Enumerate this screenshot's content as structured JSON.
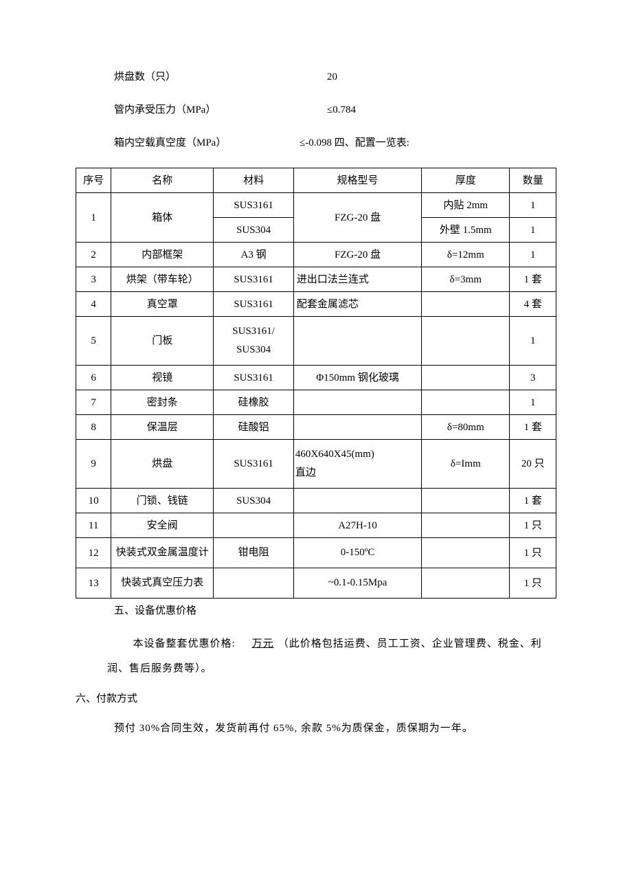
{
  "specs": [
    {
      "label": "烘盘数（只）",
      "value": "20",
      "shift": false
    },
    {
      "label": "管内承受压力（MPa）",
      "value": "≤0.784",
      "shift": false
    },
    {
      "label": "箱内空载真空度（MPa）",
      "value": "≤-0.098 四、配置一览表:",
      "shift": true
    }
  ],
  "table": {
    "headers": [
      "序号",
      "名称",
      "材料",
      "规格型号",
      "厚度",
      "数量"
    ],
    "rows": [
      {
        "seq": "1",
        "name": "箱体",
        "materials": [
          "SUS3161",
          "SUS304"
        ],
        "spec": "FZG-20 盘",
        "thicknesses": [
          "内贴 2mm",
          "外壁 1.5mm"
        ],
        "qtys": [
          "1",
          "1"
        ],
        "rowspan": 2
      },
      {
        "seq": "2",
        "name": "内部框架",
        "material": "A3 钢",
        "spec": "FZG-20 盘",
        "thickness": "δ=12mm",
        "qty": "1"
      },
      {
        "seq": "3",
        "name": "烘架（带车轮）",
        "material": "SUS3161",
        "spec": "进出口法兰连式",
        "thickness": "δ=3mm",
        "qty": "1 套",
        "specAlign": "left"
      },
      {
        "seq": "4",
        "name": "真空罩",
        "material": "SUS3161",
        "spec": "配套金属滤芯",
        "thickness": "",
        "qty": "4 套",
        "specAlign": "left"
      },
      {
        "seq": "5",
        "name": "门板",
        "material": "SUS3161/\nSUS304",
        "spec": "",
        "thickness": "",
        "qty": "1",
        "multiline": true
      },
      {
        "seq": "6",
        "name": "视镜",
        "material": "SUS3161",
        "spec": "Φ150mm 钢化玻璃",
        "thickness": "",
        "qty": "3"
      },
      {
        "seq": "7",
        "name": "密封条",
        "material": "硅橡胶",
        "spec": "",
        "thickness": "",
        "qty": "1"
      },
      {
        "seq": "8",
        "name": "保温层",
        "material": "硅酸铝",
        "spec": "",
        "thickness": "δ=80mm",
        "qty": "1 套"
      },
      {
        "seq": "9",
        "name": "烘盘",
        "material": "SUS3161",
        "spec": "460X640X45(mm)\n直边",
        "thickness": "δ=Imm",
        "qty": "20 只",
        "multiline": true,
        "specAlign": "left"
      },
      {
        "seq": "10",
        "name": "门锁、钱链",
        "material": "SUS304",
        "spec": "",
        "thickness": "",
        "qty": "1 套"
      },
      {
        "seq": "11",
        "name": "安全阀",
        "material": "",
        "spec": "A27H-10",
        "thickness": "",
        "qty": "1 只"
      },
      {
        "seq": "12",
        "name": "快装式双金属温度计",
        "material": "钳电阻",
        "spec": "0-150ºC",
        "thickness": "",
        "qty": "1 只",
        "multiline": true
      },
      {
        "seq": "13",
        "name": "快装式真空压力表",
        "material": "",
        "spec": "~0.1-0.15Mpa",
        "thickness": "",
        "qty": "1 只",
        "multiline": true
      }
    ]
  },
  "section5": {
    "title": "五、设备优惠价格",
    "text_before": "本设备整套优惠价格:",
    "underline": "万元",
    "text_after": "（此价格包括运费、员工工资、企业管理费、税金、利润、售后服务费等）。"
  },
  "section6": {
    "title": "六、付款方式",
    "text": "预付 30%合同生效，发货前再付 65%, 余款 5%为质保金，质保期为一年。"
  }
}
